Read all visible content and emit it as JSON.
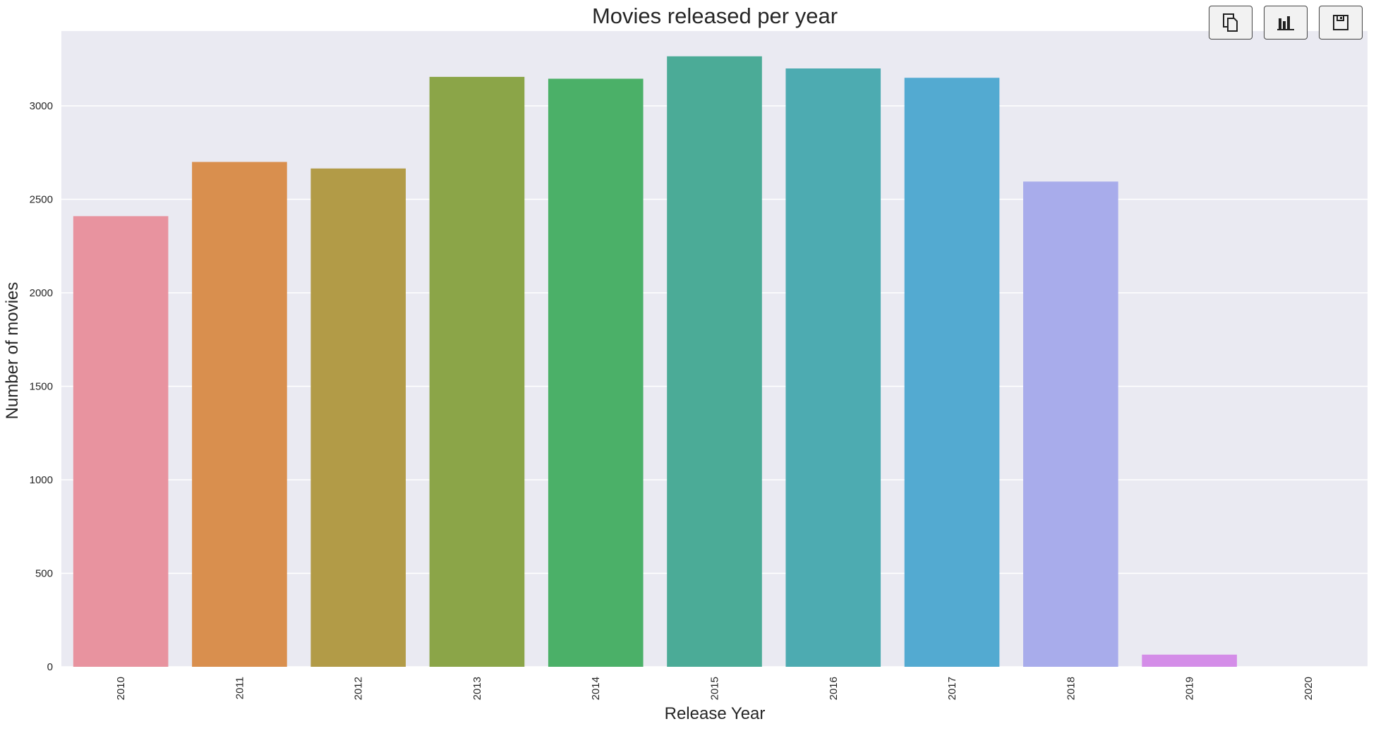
{
  "chart_data": {
    "type": "bar",
    "title": "Movies released per year",
    "xlabel": "Release Year",
    "ylabel": "Number of movies",
    "categories": [
      "2010",
      "2011",
      "2012",
      "2013",
      "2014",
      "2015",
      "2016",
      "2017",
      "2018",
      "2019",
      "2020"
    ],
    "values": [
      2410,
      2700,
      2665,
      3155,
      3145,
      3265,
      3200,
      3150,
      2595,
      65,
      0
    ],
    "colors": [
      "#e8939f",
      "#d98f4e",
      "#b29b47",
      "#8ba548",
      "#4bb068",
      "#4bab97",
      "#4dabb1",
      "#53aad1",
      "#a8aceb",
      "#d48de8",
      "#e695c9"
    ],
    "ylim": [
      0,
      3400
    ],
    "yticks": [
      0,
      500,
      1000,
      1500,
      2000,
      2500,
      3000
    ],
    "grid": true,
    "background": "#eaeaf2"
  },
  "toolbar": {
    "buttons": [
      {
        "name": "copy-button",
        "icon": "copy-icon"
      },
      {
        "name": "chart-button",
        "icon": "bar-chart-icon"
      },
      {
        "name": "save-button",
        "icon": "save-icon"
      }
    ]
  }
}
